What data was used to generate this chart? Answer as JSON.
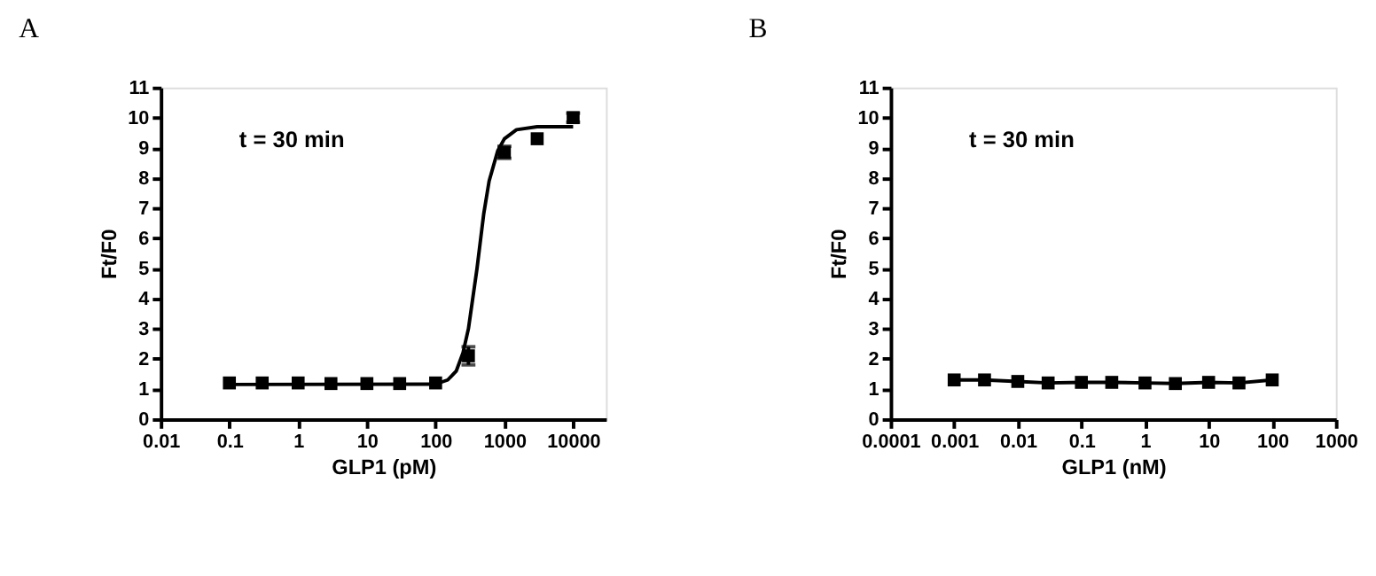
{
  "chart_data": [
    {
      "type": "scatter",
      "title": "A",
      "xlabel": "GLP1 (pM)",
      "ylabel": "Ft/F0",
      "log": "x",
      "marker": "square",
      "grid": false,
      "annotations": [
        "t = 30 min"
      ],
      "x": [
        0.1,
        0.3,
        1,
        3,
        10,
        30,
        100,
        300,
        1000,
        3000,
        10000
      ],
      "xlim": [
        0.01,
        30000
      ],
      "xticks": [
        0.01,
        0.1,
        1,
        10,
        100,
        1000,
        10000
      ],
      "ylim": [
        0,
        11
      ],
      "yticks": [
        0,
        1,
        2,
        3,
        4,
        5,
        6,
        7,
        8,
        9,
        10,
        11
      ],
      "series": [
        {
          "color": "#000000",
          "values": [
            1.2,
            1.2,
            1.2,
            1.18,
            1.18,
            1.18,
            1.2,
            2.1,
            8.85,
            9.3,
            10.0
          ],
          "errors": [
            null,
            null,
            null,
            null,
            null,
            null,
            null,
            0.3,
            0.2,
            null,
            0.15
          ]
        },
        {
          "type": "line",
          "color": "#000000",
          "marker": "none",
          "x": [
            0.1,
            100,
            150,
            200,
            250,
            300,
            400,
            500,
            600,
            800,
            1000,
            1500,
            3000,
            10000
          ],
          "values": [
            1.15,
            1.16,
            1.3,
            1.6,
            2.2,
            3.0,
            5.0,
            6.8,
            7.9,
            8.9,
            9.3,
            9.6,
            9.7,
            9.7
          ]
        }
      ]
    },
    {
      "type": "line",
      "title": "B",
      "xlabel": "GLP1 (nM)",
      "ylabel": "Ft/F0",
      "log": "x",
      "marker": "square",
      "grid": false,
      "annotations": [
        "t = 30 min"
      ],
      "x": [
        0.001,
        0.003,
        0.01,
        0.03,
        0.1,
        0.3,
        1,
        3,
        10,
        30,
        100
      ],
      "xlim": [
        0.0001,
        1000
      ],
      "xticks": [
        0.0001,
        0.001,
        0.01,
        0.1,
        1,
        10,
        100,
        1000
      ],
      "ylim": [
        0,
        11
      ],
      "yticks": [
        0,
        1,
        2,
        3,
        4,
        5,
        6,
        7,
        8,
        9,
        10,
        11
      ],
      "series": [
        {
          "color": "#000000",
          "values": [
            1.3,
            1.3,
            1.25,
            1.2,
            1.22,
            1.22,
            1.2,
            1.18,
            1.22,
            1.2,
            1.3
          ]
        }
      ]
    }
  ]
}
